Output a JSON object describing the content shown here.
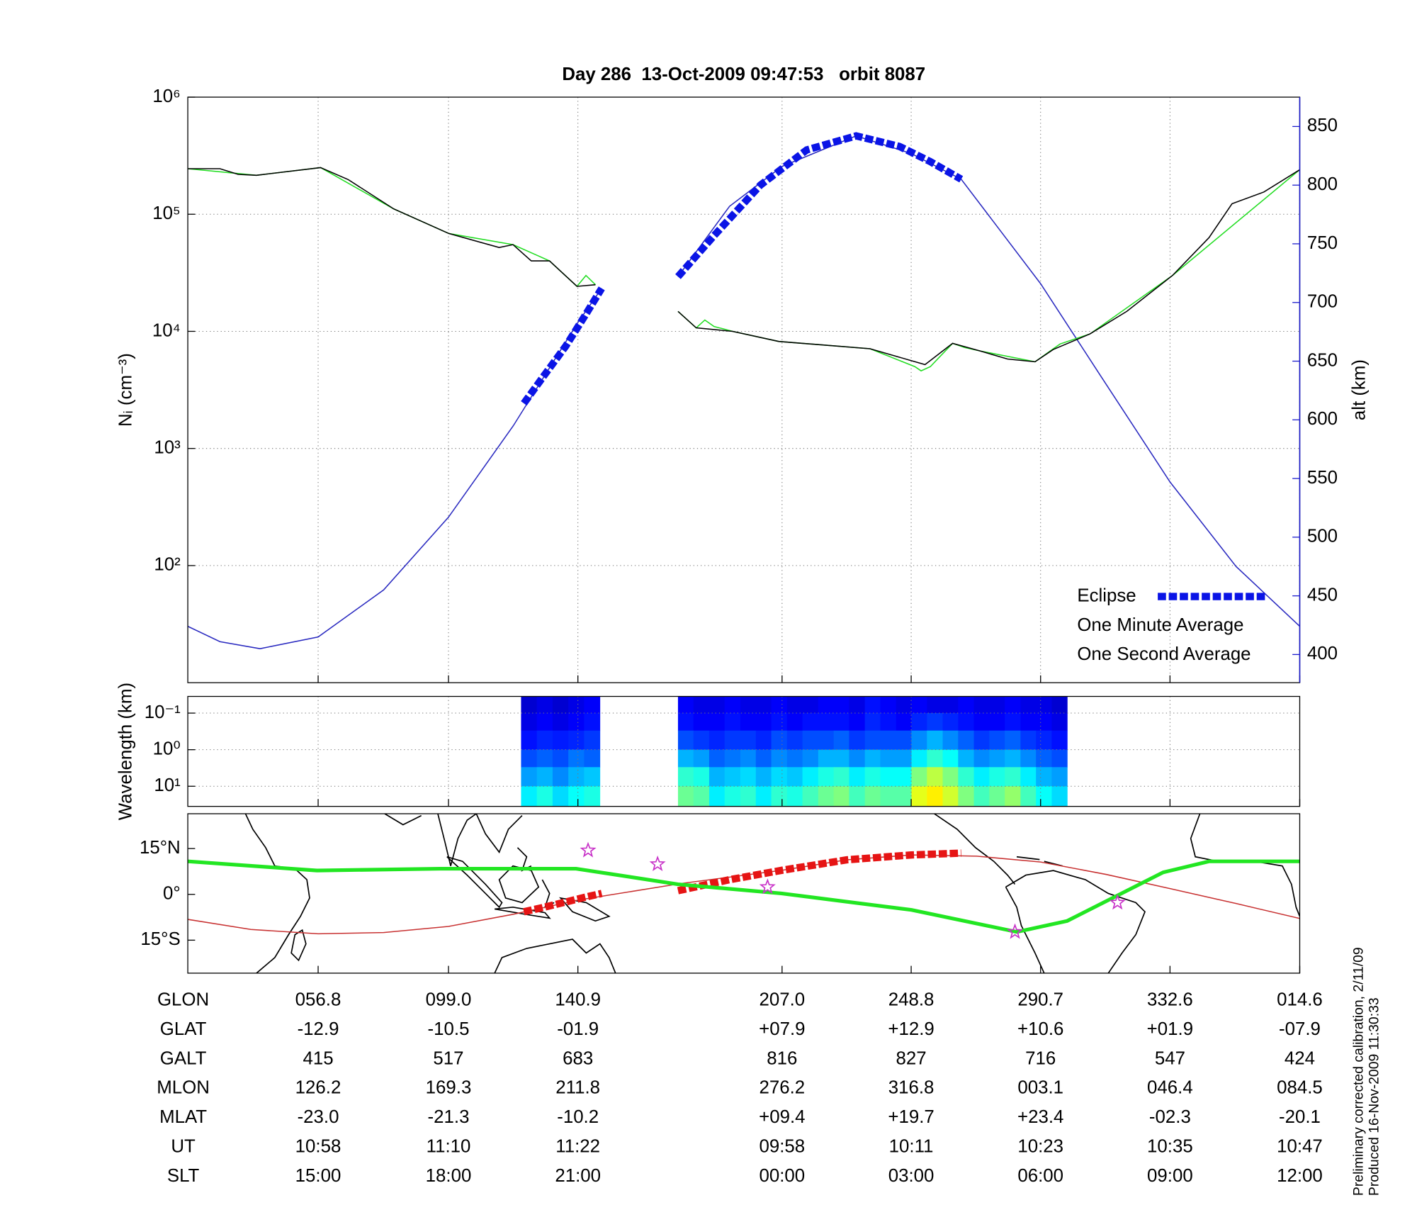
{
  "chart_data": [
    {
      "type": "line",
      "title": "Day 286  13-Oct-2009 09:47:53   orbit 8087",
      "ylabel": "Nᵢ (cm⁻³)",
      "y2label": "alt (km)",
      "xlim": [
        14.6,
        374.6
      ],
      "xticks": [
        56.8,
        99.0,
        140.9,
        207.0,
        248.8,
        290.7,
        332.6,
        374.6
      ],
      "yscale": "log",
      "ylim": [
        10,
        1000000
      ],
      "yticks": [
        {
          "value": 100,
          "label": "10²"
        },
        {
          "value": 1000,
          "label": "10³"
        },
        {
          "value": 10000,
          "label": "10⁴"
        },
        {
          "value": 100000,
          "label": "10⁵"
        },
        {
          "value": 1000000,
          "label": "10⁶"
        }
      ],
      "y2lim": [
        376,
        875
      ],
      "y2ticks": [
        400,
        450,
        500,
        550,
        600,
        650,
        700,
        750,
        800,
        850
      ],
      "y2color": "#1a1acc",
      "grid": true,
      "legend": "lower right",
      "series": [
        {
          "color": "#2a2ac0",
          "axis": "y2",
          "line_style": "solid",
          "x": [
            14.6,
            25,
            38,
            56.8,
            78,
            99,
            120,
            140.9,
            148.6,
            160,
            173.3,
            190,
            207,
            231,
            248.8,
            265,
            290.7,
            310,
            332.6,
            354,
            374.6
          ],
          "values": [
            424,
            411,
            405,
            415,
            455,
            517,
            595,
            683,
            712,
            null,
            722,
            782,
            816,
            842,
            827,
            805,
            716,
            638,
            547,
            475,
            424
          ]
        },
        {
          "name": "One Second Average",
          "color": "#22dd22",
          "line_style": "solid",
          "x": [
            14.6,
            36.8,
            57.6,
            81.3,
            99.1,
            119.9,
            131.7,
            140.6,
            143.5,
            146.6,
            160,
            173.3,
            179.2,
            182,
            185,
            191,
            205.9,
            235.5,
            250,
            252,
            255,
            262.2,
            266,
            271.1,
            288.9,
            297,
            306.7,
            333.4,
            374.6
          ],
          "values": [
            245000,
            215000,
            250000,
            111000,
            68500,
            55000,
            40000,
            24200,
            30000,
            25000,
            null,
            14800,
            10700,
            12500,
            11000,
            10000,
            8200,
            7100,
            5000,
            4600,
            5000,
            7900,
            7300,
            6800,
            5500,
            7800,
            9500,
            30000,
            240000
          ]
        },
        {
          "name": "One Minute Average",
          "color": "#000000",
          "line_style": "solid",
          "x": [
            14.6,
            25.0,
            30.9,
            36.8,
            57.6,
            66.5,
            81.3,
            99.1,
            115.4,
            119.9,
            125.8,
            131.7,
            140.6,
            146.6,
            160,
            173.3,
            179.2,
            191.0,
            205.9,
            235.5,
            253.3,
            262.2,
            271.1,
            280.0,
            288.9,
            294.8,
            306.7,
            318.6,
            333.4,
            345.2,
            352.7,
            363.0,
            374.6
          ],
          "values": [
            245000,
            245000,
            219000,
            215000,
            250000,
            198000,
            111000,
            68500,
            52000,
            55000,
            40000,
            40000,
            24200,
            25000,
            null,
            14800,
            10700,
            10000,
            8200,
            7100,
            5200,
            7900,
            6800,
            5800,
            5500,
            7000,
            9500,
            14800,
            30000,
            63000,
            123000,
            155000,
            240000
          ]
        },
        {
          "name": "Eclipse",
          "color": "#0a14e6",
          "axis": "y2",
          "line_style": "dashed",
          "x": [
            123.4,
            130,
            137,
            143,
            148.6,
            160,
            173.3,
            185,
            200,
            215,
            231,
            245,
            255,
            265
          ],
          "values": [
            614,
            638,
            663,
            688,
            712,
            null,
            722,
            757,
            800,
            830,
            842,
            833,
            820,
            805
          ]
        }
      ]
    },
    {
      "type": "heatmap",
      "ylabel": "Wavelength (km)",
      "xlim": [
        14.6,
        374.6
      ],
      "xticks": [
        56.8,
        99.0,
        140.9,
        207.0,
        248.8,
        290.7,
        332.6,
        374.6
      ],
      "yscale": "log",
      "ylim": [
        35.5,
        0.035
      ],
      "yticks": [
        {
          "value": 0.1,
          "label": "10⁻¹"
        },
        {
          "value": 1,
          "label": "10⁰"
        },
        {
          "value": 10,
          "label": "10¹"
        }
      ],
      "grid": true,
      "zlim": [
        0,
        1
      ],
      "colormap": "jet",
      "x_edges": [
        122.5,
        127.6,
        132.7,
        137.8,
        142.9,
        148.0,
        173.3,
        178.3,
        183.4,
        188.4,
        193.5,
        198.5,
        203.5,
        208.6,
        213.6,
        218.7,
        223.7,
        228.7,
        233.8,
        238.8,
        243.9,
        248.9,
        253.9,
        259.0,
        264.0,
        269.1,
        274.1,
        279.1,
        284.2,
        289.2,
        294.3,
        299.3
      ],
      "y_edges": [
        0.035,
        0.1,
        0.3,
        1,
        3,
        10,
        35.5
      ],
      "values": [
        [
          0.08,
          0.1,
          0.08,
          0.1,
          0.12,
          null,
          0.12,
          0.1,
          0.1,
          0.12,
          0.1,
          0.1,
          0.12,
          0.1,
          0.1,
          0.12,
          0.12,
          0.1,
          0.14,
          0.12,
          0.1,
          0.12,
          0.1,
          0.1,
          0.12,
          0.1,
          0.1,
          0.12,
          0.1,
          0.1,
          0.08
        ],
        [
          0.1,
          0.12,
          0.1,
          0.12,
          0.14,
          null,
          0.14,
          0.12,
          0.12,
          0.14,
          0.12,
          0.12,
          0.14,
          0.12,
          0.14,
          0.14,
          0.14,
          0.12,
          0.16,
          0.14,
          0.12,
          0.16,
          0.18,
          0.16,
          0.14,
          0.12,
          0.12,
          0.14,
          0.12,
          0.12,
          0.1
        ],
        [
          0.14,
          0.16,
          0.15,
          0.16,
          0.18,
          null,
          0.2,
          0.18,
          0.16,
          0.18,
          0.18,
          0.16,
          0.2,
          0.18,
          0.2,
          0.2,
          0.22,
          0.18,
          0.2,
          0.2,
          0.2,
          0.26,
          0.3,
          0.26,
          0.22,
          0.18,
          0.2,
          0.22,
          0.18,
          0.16,
          0.14
        ],
        [
          0.2,
          0.22,
          0.2,
          0.24,
          0.22,
          null,
          0.3,
          0.28,
          0.22,
          0.24,
          0.26,
          0.22,
          0.26,
          0.24,
          0.26,
          0.3,
          0.3,
          0.26,
          0.3,
          0.28,
          0.28,
          0.36,
          0.42,
          0.38,
          0.3,
          0.26,
          0.28,
          0.3,
          0.26,
          0.22,
          0.2
        ],
        [
          0.28,
          0.3,
          0.26,
          0.3,
          0.32,
          null,
          0.42,
          0.4,
          0.3,
          0.32,
          0.34,
          0.3,
          0.34,
          0.32,
          0.36,
          0.4,
          0.42,
          0.36,
          0.4,
          0.38,
          0.38,
          0.5,
          0.56,
          0.5,
          0.42,
          0.36,
          0.4,
          0.42,
          0.36,
          0.3,
          0.28
        ],
        [
          0.36,
          0.4,
          0.34,
          0.38,
          0.4,
          null,
          0.48,
          0.46,
          0.36,
          0.4,
          0.42,
          0.36,
          0.42,
          0.4,
          0.44,
          0.48,
          0.5,
          0.44,
          0.48,
          0.46,
          0.46,
          0.6,
          0.64,
          0.58,
          0.5,
          0.44,
          0.48,
          0.52,
          0.44,
          0.38,
          0.34
        ]
      ]
    },
    {
      "type": "map",
      "xlim": [
        14.6,
        374.6
      ],
      "xticks": [
        56.8,
        99.0,
        140.9,
        207.0,
        248.8,
        290.7,
        332.6,
        374.6
      ],
      "ylim": [
        -25.8,
        26.4
      ],
      "yticks": [
        {
          "value": -15,
          "label": "15°S"
        },
        {
          "value": 0,
          "label": "0°"
        },
        {
          "value": 15,
          "label": "15°N"
        }
      ],
      "grid": false,
      "series": [
        {
          "color": "#c83232",
          "line_style": "solid",
          "x": [
            14.6,
            35,
            56.8,
            78,
            99,
            120,
            140.9,
            174,
            207,
            228,
            248.8,
            270,
            290.7,
            312,
            332.6,
            354,
            374.6
          ],
          "values": [
            -8.2,
            -11.5,
            -12.9,
            -12.5,
            -10.5,
            -6.5,
            -1.9,
            3.5,
            7.9,
            11.3,
            12.9,
            12.5,
            10.6,
            6.5,
            1.9,
            -3,
            -7.9
          ]
        },
        {
          "color": "#e61414",
          "line_style": "dashed",
          "x": [
            123.4,
            130,
            137,
            143,
            148.6,
            160,
            173.3,
            190,
            207,
            228,
            248.8,
            265
          ],
          "values": [
            -5.7,
            -4.2,
            -2.5,
            -1,
            0.3,
            null,
            1.2,
            4.8,
            7.9,
            11.3,
            12.9,
            13.5
          ]
        },
        {
          "color": "#22e622",
          "line_style": "thick",
          "x": [
            14.6,
            56.4,
            96.2,
            140.3,
            173.3,
            206.8,
            248.9,
            283.0,
            299.3,
            330.4,
            345.2,
            374.6
          ],
          "values": [
            10.8,
            7.8,
            8.4,
            8.4,
            3.3,
            0.3,
            -5.1,
            -12.3,
            -8.7,
            7.2,
            10.8,
            10.8
          ]
        },
        {
          "color": "#c832c8",
          "marker": "star",
          "x": [
            144.2,
            166.7,
            202.3,
            282.4,
            315.6
          ],
          "values": [
            14.4,
            9.9,
            2.4,
            -12.3,
            -2.7
          ]
        }
      ]
    }
  ],
  "table": {
    "rows": [
      {
        "label": "GLON",
        "values": [
          "056.8",
          "099.0",
          "140.9",
          "207.0",
          "248.8",
          "290.7",
          "332.6",
          "014.6"
        ]
      },
      {
        "label": "GLAT",
        "values": [
          "-12.9",
          "-10.5",
          "-01.9",
          "+07.9",
          "+12.9",
          "+10.6",
          "+01.9",
          "-07.9"
        ]
      },
      {
        "label": "GALT",
        "values": [
          "415",
          "517",
          "683",
          "816",
          "827",
          "716",
          "547",
          "424"
        ]
      },
      {
        "label": "MLON",
        "values": [
          "126.2",
          "169.3",
          "211.8",
          "276.2",
          "316.8",
          "003.1",
          "046.4",
          "084.5"
        ]
      },
      {
        "label": "MLAT",
        "values": [
          "-23.0",
          "-21.3",
          "-10.2",
          "+09.4",
          "+19.7",
          "+23.4",
          "-02.3",
          "-20.1"
        ]
      },
      {
        "label": "UT",
        "values": [
          "10:58",
          "11:10",
          "11:22",
          "09:58",
          "10:11",
          "10:23",
          "10:35",
          "10:47"
        ]
      },
      {
        "label": "SLT",
        "values": [
          "15:00",
          "18:00",
          "21:00",
          "00:00",
          "03:00",
          "06:00",
          "09:00",
          "12:00"
        ]
      }
    ]
  },
  "notes": [
    "Preliminary corrected calibration, 2/11/09",
    "Produced 16-Nov-2009 11:30:33"
  ]
}
